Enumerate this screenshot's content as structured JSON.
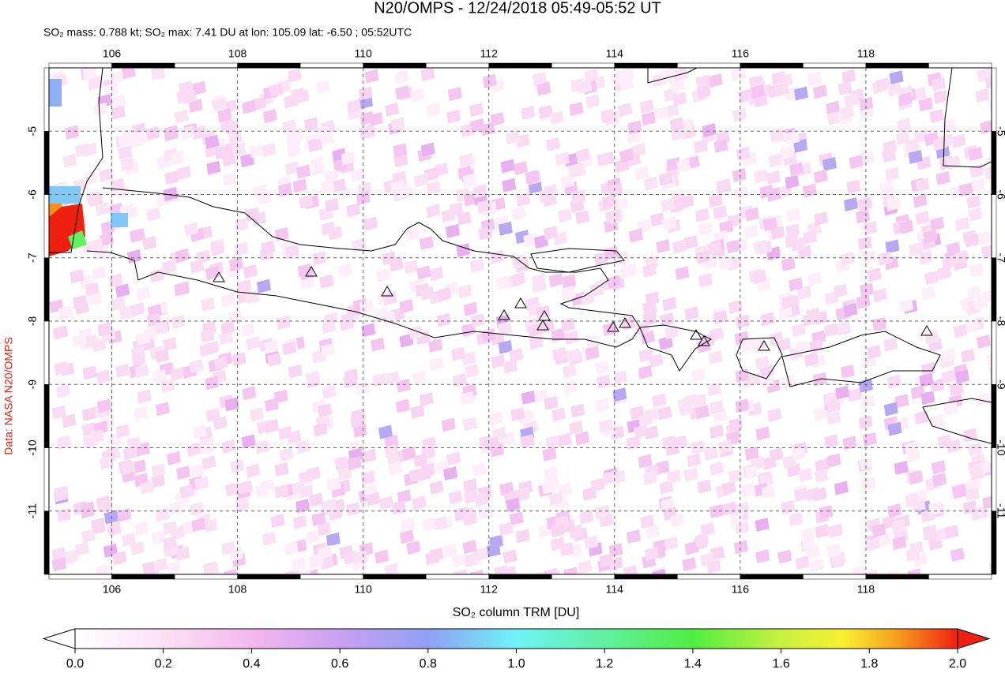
{
  "map": {
    "title": "N20/OMPS - 12/24/2018 05:49-05:52 UT",
    "subtitle": "SO₂ mass: 0.788 kt; SO₂ max: 7.41 DU at lon: 105.09 lat: -6.50 ; 05:52UTC",
    "side_label": "Data: NASA N20/OMPS",
    "xlim": [
      105,
      120
    ],
    "ylim": [
      -4,
      -12
    ],
    "xticks": [
      106,
      108,
      110,
      112,
      114,
      116,
      118
    ],
    "yticks": [
      -5,
      -6,
      -7,
      -8,
      -9,
      -10,
      -11
    ],
    "grid": true,
    "colorbar": {
      "label": "SO₂ column TRM [DU]",
      "lim": [
        0,
        2
      ],
      "ticks": [
        {
          "value": 0,
          "label": "0.0"
        },
        {
          "value": 0.2,
          "label": "0.2"
        },
        {
          "value": 0.4,
          "label": "0.4"
        },
        {
          "value": 0.6,
          "label": "0.6"
        },
        {
          "value": 0.8,
          "label": "0.8"
        },
        {
          "value": 1,
          "label": "1.0"
        },
        {
          "value": 1.2,
          "label": "1.2"
        },
        {
          "value": 1.4,
          "label": "1.4"
        },
        {
          "value": 1.6,
          "label": "1.6"
        },
        {
          "value": 1.8,
          "label": "1.8"
        },
        {
          "value": 2,
          "label": "2.0"
        }
      ]
    }
  }
}
